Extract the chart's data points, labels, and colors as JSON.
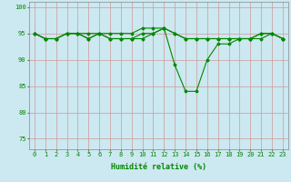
{
  "xlabel": "Humidité relative (%)",
  "xlim": [
    -0.5,
    23.5
  ],
  "ylim": [
    73,
    101
  ],
  "yticks": [
    75,
    80,
    85,
    90,
    95,
    100
  ],
  "xticks": [
    0,
    1,
    2,
    3,
    4,
    5,
    6,
    7,
    8,
    9,
    10,
    11,
    12,
    13,
    14,
    15,
    16,
    17,
    18,
    19,
    20,
    21,
    22,
    23
  ],
  "bg_color": "#cce8f0",
  "grid_color": "#cc9999",
  "line_color": "#008800",
  "series": [
    [
      95,
      94,
      94,
      95,
      95,
      94,
      95,
      94,
      94,
      94,
      95,
      95,
      96,
      89,
      84,
      84,
      90,
      93,
      93,
      94,
      94,
      95,
      95,
      94
    ],
    [
      95,
      94,
      94,
      95,
      95,
      94,
      95,
      94,
      94,
      94,
      94,
      95,
      96,
      95,
      94,
      94,
      94,
      94,
      94,
      94,
      94,
      94,
      95,
      94
    ],
    [
      95,
      94,
      94,
      95,
      95,
      95,
      95,
      95,
      95,
      95,
      96,
      96,
      96,
      95,
      94,
      94,
      94,
      94,
      94,
      94,
      94,
      95,
      95,
      94
    ]
  ]
}
